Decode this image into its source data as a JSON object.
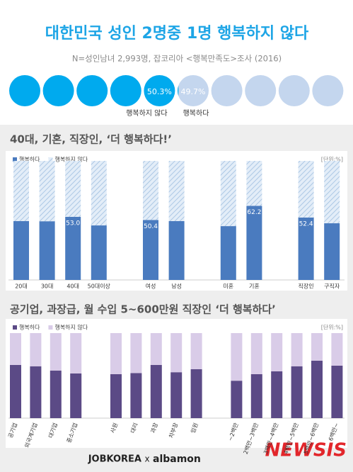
{
  "chart_data": [
    {
      "type": "pictogram",
      "title": "대한민국 성인 2명중 1명 행복하지 않다",
      "subtitle": "N=성인남녀 2,993명,  잡코리아 <행복만족도>조사 (2016)",
      "categories": [
        "행복하지 않다",
        "행복하다"
      ],
      "values": [
        50.3,
        49.7
      ],
      "value_labels": [
        "50.3%",
        "49.7%"
      ],
      "colors": [
        "#00aaee",
        "#c4d6ee"
      ]
    },
    {
      "type": "stackedbar",
      "title": "40대, 기혼, 직장인, ‘더 행복하다!’",
      "unit": "[단위:%]",
      "categories": [
        "20대",
        "30대",
        "40대",
        "50대이상",
        null,
        "여성",
        "남성",
        null,
        "미혼",
        "기혼",
        null,
        "직장인",
        "구직자"
      ],
      "series": [
        {
          "name": "행복하다",
          "color": "#4a7bbf",
          "values": [
            49.4,
            49.3,
            53.0,
            45.8,
            null,
            50.4,
            49.4,
            null,
            45.2,
            62.2,
            null,
            52.4,
            47.6
          ],
          "value_labels": [
            null,
            null,
            "53.0",
            null,
            null,
            "50.4",
            null,
            null,
            null,
            "62.2",
            null,
            "52.4",
            null
          ]
        },
        {
          "name": "행복하지 않다",
          "color": "#c9dcef",
          "pattern": "hatch",
          "values": [
            50.6,
            50.7,
            47.0,
            54.2,
            null,
            49.6,
            50.6,
            null,
            54.8,
            37.8,
            null,
            47.6,
            52.4
          ]
        }
      ],
      "ylim": [
        0,
        100
      ]
    },
    {
      "type": "stackedbar",
      "title": "공기업, 과장급, 월 수입 5~600만원 직장인 ‘더 행복하다’",
      "unit": "[단위:%]",
      "categories": [
        "공기업",
        "외국계기업",
        "대기업",
        "중소기업",
        null,
        "사원",
        "대리",
        "과장",
        "차부장",
        "임원",
        null,
        "~2백만",
        "2백만~3백만",
        "3백만~4백만",
        "4백만~5백만",
        "5백만~6백만",
        "6백만~"
      ],
      "series": [
        {
          "name": "행복하다",
          "color": "#5b4a86",
          "values": [
            62.5,
            61.0,
            56.0,
            52.5,
            null,
            51.7,
            53.0,
            62.5,
            54.0,
            57.5,
            null,
            44.0,
            51.7,
            55.0,
            61.0,
            67.5,
            61.7
          ]
        },
        {
          "name": "행복하지 않다",
          "color": "#d9cce8",
          "values": [
            37.5,
            39.0,
            44.0,
            47.5,
            null,
            48.3,
            47.0,
            37.5,
            46.0,
            42.5,
            null,
            56.0,
            48.3,
            45.0,
            39.0,
            32.5,
            38.3
          ]
        }
      ],
      "ylim": [
        0,
        100
      ]
    }
  ],
  "footer": {
    "brand_left": "JOBKOREA",
    "separator": "x",
    "brand_right": "albamon",
    "source": "NEWSIS"
  }
}
